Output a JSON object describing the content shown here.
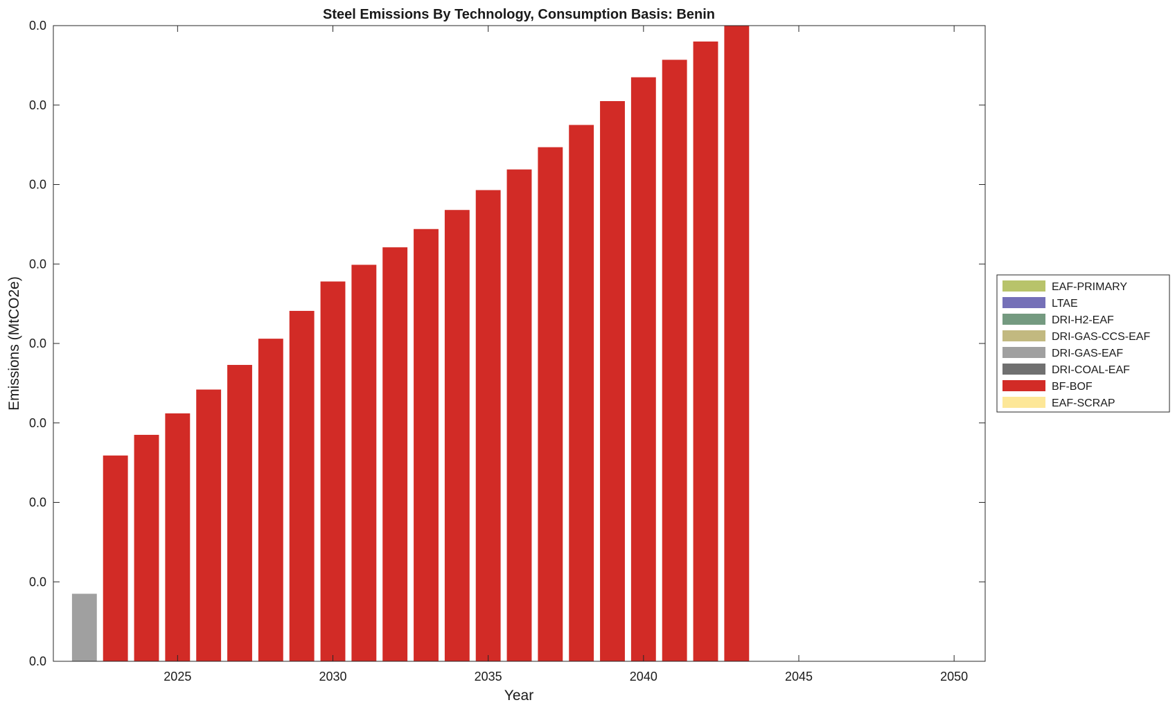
{
  "chart_data": {
    "type": "bar",
    "stacked": true,
    "title": "Steel Emissions By Technology, Consumption Basis: Benin",
    "xlabel": "Year",
    "ylabel": "Emissions (MtCO2e)",
    "x_ticks": [
      2025,
      2030,
      2035,
      2040,
      2045,
      2050
    ],
    "xlim": [
      2021,
      2051
    ],
    "y_tick_labels": [
      "0.0",
      "0.0",
      "0.0",
      "0.0",
      "0.0",
      "0.0",
      "0.0",
      "0.0",
      "0.0"
    ],
    "ylim": [
      0,
      8
    ],
    "grid": false,
    "legend_position": "right",
    "categories": [
      2022,
      2023,
      2024,
      2025,
      2026,
      2027,
      2028,
      2029,
      2030,
      2031,
      2032,
      2033,
      2034,
      2035,
      2036,
      2037,
      2038,
      2039,
      2040,
      2041,
      2042,
      2043
    ],
    "series": [
      {
        "name": "EAF-PRIMARY",
        "color": "#b8c36a",
        "values": [
          0,
          0,
          0,
          0,
          0,
          0,
          0,
          0,
          0,
          0,
          0,
          0,
          0,
          0,
          0,
          0,
          0,
          0,
          0,
          0,
          0,
          0
        ]
      },
      {
        "name": "LTAE",
        "color": "#7570b8",
        "values": [
          0,
          0,
          0,
          0,
          0,
          0,
          0,
          0,
          0,
          0,
          0,
          0,
          0,
          0,
          0,
          0,
          0,
          0,
          0,
          0,
          0,
          0
        ]
      },
      {
        "name": "DRI-H2-EAF",
        "color": "#749a80",
        "values": [
          0,
          0,
          0,
          0,
          0,
          0,
          0,
          0,
          0,
          0,
          0,
          0,
          0,
          0,
          0,
          0,
          0,
          0,
          0,
          0,
          0,
          0
        ]
      },
      {
        "name": "DRI-GAS-CCS-EAF",
        "color": "#c2b980",
        "values": [
          0,
          0,
          0,
          0,
          0,
          0,
          0,
          0,
          0,
          0,
          0,
          0,
          0,
          0,
          0,
          0,
          0,
          0,
          0,
          0,
          0,
          0
        ]
      },
      {
        "name": "DRI-GAS-EAF",
        "color": "#a0a0a0",
        "values": [
          0.85,
          0,
          0,
          0,
          0,
          0,
          0,
          0,
          0,
          0,
          0,
          0,
          0,
          0,
          0,
          0,
          0,
          0,
          0,
          0,
          0,
          0
        ]
      },
      {
        "name": "DRI-COAL-EAF",
        "color": "#707070",
        "values": [
          0,
          0,
          0,
          0,
          0,
          0,
          0,
          0,
          0,
          0,
          0,
          0,
          0,
          0,
          0,
          0,
          0,
          0,
          0,
          0,
          0,
          0
        ]
      },
      {
        "name": "BF-BOF",
        "color": "#d22b26",
        "values": [
          0,
          2.59,
          2.85,
          3.12,
          3.42,
          3.73,
          4.06,
          4.41,
          4.78,
          4.99,
          5.21,
          5.44,
          5.68,
          5.93,
          6.19,
          6.47,
          6.75,
          7.05,
          7.35,
          7.57,
          7.8,
          8.05
        ]
      },
      {
        "name": "EAF-SCRAP",
        "color": "#fde797",
        "values": [
          0,
          0,
          0,
          0,
          0,
          0,
          0,
          0,
          0,
          0,
          0,
          0,
          0,
          0,
          0,
          0,
          0,
          0,
          0,
          0,
          0,
          0
        ]
      }
    ]
  }
}
